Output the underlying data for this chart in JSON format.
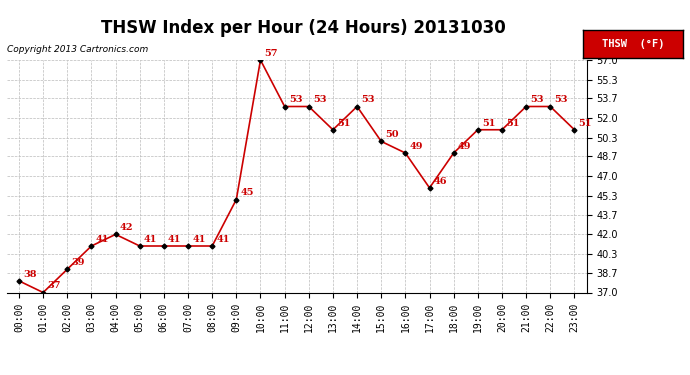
{
  "title": "THSW Index per Hour (24 Hours) 20131030",
  "copyright": "Copyright 2013 Cartronics.com",
  "legend_label": "THSW  (°F)",
  "hours": [
    0,
    1,
    2,
    3,
    4,
    5,
    6,
    7,
    8,
    9,
    10,
    11,
    12,
    13,
    14,
    15,
    16,
    17,
    18,
    19,
    20,
    21,
    22,
    23
  ],
  "x_labels": [
    "00:00",
    "01:00",
    "02:00",
    "03:00",
    "04:00",
    "05:00",
    "06:00",
    "07:00",
    "08:00",
    "09:00",
    "10:00",
    "11:00",
    "12:00",
    "13:00",
    "14:00",
    "15:00",
    "16:00",
    "17:00",
    "18:00",
    "19:00",
    "20:00",
    "21:00",
    "22:00",
    "23:00"
  ],
  "values": [
    38,
    37,
    39,
    41,
    42,
    41,
    41,
    41,
    41,
    45,
    57,
    53,
    53,
    51,
    53,
    50,
    49,
    46,
    49,
    51,
    51,
    53,
    53,
    51
  ],
  "ylim": [
    37.0,
    57.0
  ],
  "yticks": [
    37.0,
    38.7,
    40.3,
    42.0,
    43.7,
    45.3,
    47.0,
    48.7,
    50.3,
    52.0,
    53.7,
    55.3,
    57.0
  ],
  "line_color": "#cc0000",
  "marker_color": "#000000",
  "bg_color": "#ffffff",
  "plot_bg_color": "#ffffff",
  "grid_color": "#bbbbbb",
  "title_fontsize": 12,
  "label_fontsize": 7,
  "annotation_fontsize": 7,
  "legend_bg": "#cc0000",
  "legend_fg": "#ffffff"
}
